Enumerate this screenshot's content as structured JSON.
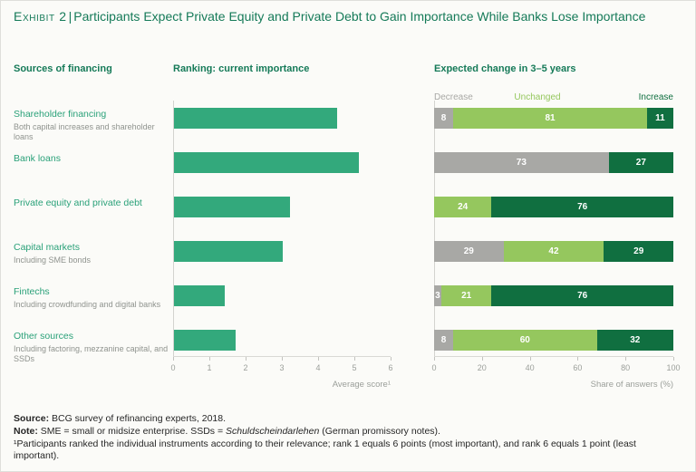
{
  "title": {
    "exhibit": "Exhibit 2",
    "separator": "|",
    "text": "Participants Expect Private Equity and Private Debt to Gain Importance While Banks Lose Importance"
  },
  "headers": {
    "sources": "Sources of financing",
    "ranking": "Ranking: current importance",
    "expected": "Expected change in 3–5 years"
  },
  "sources": [
    {
      "label": "Shareholder financing",
      "sub": "Both capital increases and shareholder loans"
    },
    {
      "label": "Bank loans",
      "sub": ""
    },
    {
      "label": "Private equity and private debt",
      "sub": ""
    },
    {
      "label": "Capital markets",
      "sub": "Including SME bonds"
    },
    {
      "label": "Fintechs",
      "sub": "Including crowdfunding and digital banks"
    },
    {
      "label": "Other sources",
      "sub": "Including factoring, mezzanine capital, and SSDs"
    }
  ],
  "chart_data": [
    {
      "type": "bar",
      "orientation": "horizontal",
      "title": "Ranking: current importance",
      "categories": [
        "Shareholder financing",
        "Bank loans",
        "Private equity and private debt",
        "Capital markets",
        "Fintechs",
        "Other sources"
      ],
      "values": [
        4.5,
        5.1,
        3.2,
        3.0,
        1.4,
        1.7
      ],
      "xlabel": "Average score¹",
      "xlim": [
        0,
        6
      ],
      "xticks": [
        "0",
        "1",
        "2",
        "3",
        "4",
        "5",
        "6"
      ],
      "grid": false,
      "legend_position": "none"
    },
    {
      "type": "bar",
      "stacked": true,
      "orientation": "horizontal",
      "title": "Expected change in 3–5 years",
      "categories": [
        "Shareholder financing",
        "Bank loans",
        "Private equity and private debt",
        "Capital markets",
        "Fintechs",
        "Other sources"
      ],
      "series": [
        {
          "name": "Decrease",
          "color": "#a8a8a5",
          "values": [
            8,
            73,
            0,
            29,
            3,
            8
          ]
        },
        {
          "name": "Unchanged",
          "color": "#95c75e",
          "values": [
            81,
            0,
            24,
            42,
            21,
            60
          ]
        },
        {
          "name": "Increase",
          "color": "#106f40",
          "values": [
            11,
            27,
            76,
            29,
            76,
            32
          ]
        }
      ],
      "xlabel": "Share of answers (%)",
      "xlim": [
        0,
        100
      ],
      "xticks": [
        "0",
        "20",
        "40",
        "60",
        "80",
        "100"
      ],
      "grid": false,
      "legend_position": "top"
    }
  ],
  "colors": {
    "title_green": "#157a58",
    "label_green": "#2aa179",
    "bar_green": "#33a97c",
    "axis_gray": "#9b9f9a",
    "background": "#fbfbf8"
  },
  "footnotes": {
    "source_label": "Source:",
    "source_text": "BCG survey of refinancing experts, 2018.",
    "note_label": "Note:",
    "note_pre": "SME = small or midsize enterprise. SSDs = ",
    "note_italic": "Schuldscheindarlehen",
    "note_post": "(German promissory notes).",
    "rank_note": "¹Participants ranked the individual instruments according to their relevance; rank 1 equals 6 points (most important), and rank 6 equals 1 point (least important)."
  }
}
